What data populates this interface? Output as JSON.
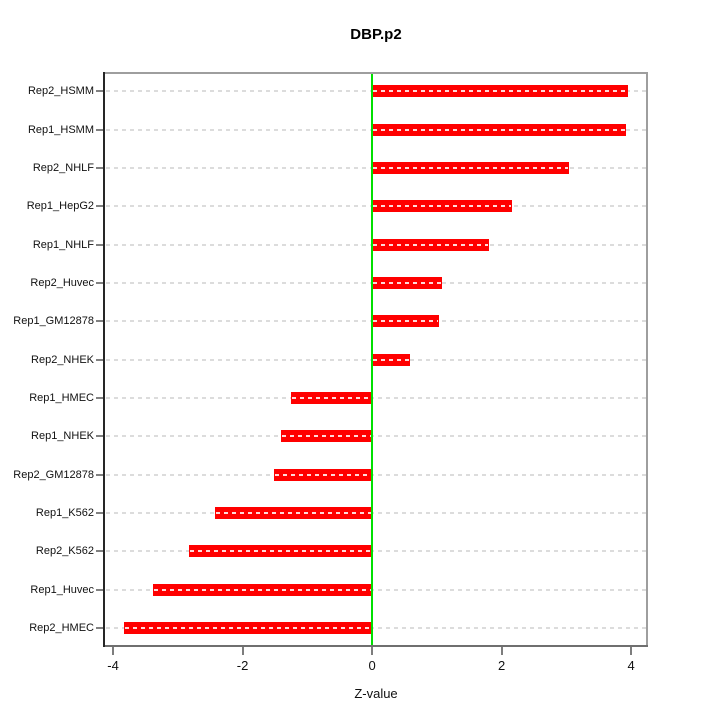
{
  "title": "DBP.p2",
  "chart_data": {
    "type": "bar",
    "orientation": "horizontal",
    "title": "DBP.p2",
    "xlabel": "Z-value",
    "ylabel": "",
    "categories": [
      "Rep2_HSMM",
      "Rep1_HSMM",
      "Rep2_NHLF",
      "Rep1_HepG2",
      "Rep1_NHLF",
      "Rep2_Huvec",
      "Rep1_GM12878",
      "Rep2_NHEK",
      "Rep1_HMEC",
      "Rep1_NHEK",
      "Rep2_GM12878",
      "Rep1_K562",
      "Rep2_K562",
      "Rep1_Huvec",
      "Rep2_HMEC"
    ],
    "values": [
      3.95,
      3.92,
      3.04,
      2.16,
      1.81,
      1.08,
      1.03,
      0.58,
      -1.25,
      -1.4,
      -1.52,
      -2.43,
      -2.83,
      -3.39,
      -3.83
    ],
    "x_ticks": [
      -4,
      -2,
      0,
      2,
      4
    ],
    "x_tick_labels": [
      "-4",
      "-2",
      "0",
      "2",
      "4"
    ],
    "xlim": [
      -4.14,
      4.26
    ],
    "grid": "horizontal-dashed-per-category",
    "legend": "none",
    "bar_color": "#ff0000",
    "zero_line_color": "#00e000",
    "gridline_color": "#dcdcdc"
  }
}
